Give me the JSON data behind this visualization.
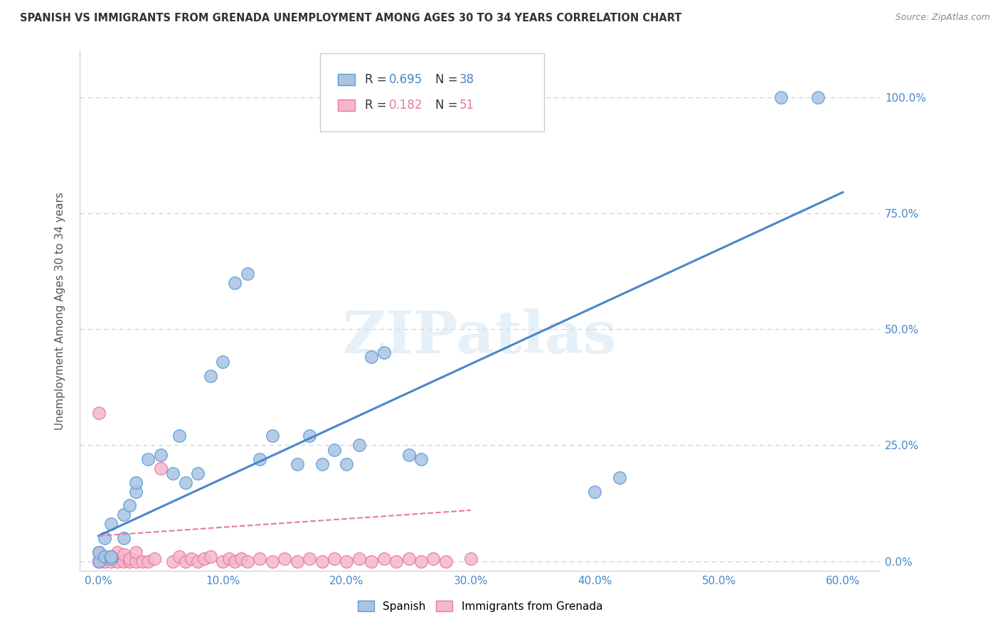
{
  "title": "SPANISH VS IMMIGRANTS FROM GRENADA UNEMPLOYMENT AMONG AGES 30 TO 34 YEARS CORRELATION CHART",
  "source": "Source: ZipAtlas.com",
  "xlabel_ticks": [
    "0.0%",
    "10.0%",
    "20.0%",
    "30.0%",
    "40.0%",
    "50.0%",
    "60.0%"
  ],
  "xlabel_vals": [
    0.0,
    0.1,
    0.2,
    0.3,
    0.4,
    0.5,
    0.6
  ],
  "ylabel_ticks": [
    "0.0%",
    "25.0%",
    "50.0%",
    "75.0%",
    "100.0%"
  ],
  "ylabel_vals": [
    0.0,
    0.25,
    0.5,
    0.75,
    1.0
  ],
  "ylabel_label": "Unemployment Among Ages 30 to 34 years",
  "xlim": [
    -0.015,
    0.63
  ],
  "ylim": [
    -0.02,
    1.1
  ],
  "spanish_R": 0.695,
  "spanish_N": 38,
  "grenada_R": 0.182,
  "grenada_N": 51,
  "spanish_color": "#aac4e2",
  "spanish_edge_color": "#5b9bd5",
  "grenada_color": "#f5b8cb",
  "grenada_edge_color": "#e8799e",
  "spanish_line_color": "#4a86c8",
  "grenada_line_color": "#e8799e",
  "watermark_text": "ZIPatlas",
  "spanish_points_x": [
    0.0,
    0.0,
    0.005,
    0.005,
    0.01,
    0.01,
    0.01,
    0.02,
    0.02,
    0.025,
    0.03,
    0.03,
    0.04,
    0.05,
    0.06,
    0.065,
    0.07,
    0.08,
    0.09,
    0.1,
    0.11,
    0.12,
    0.13,
    0.14,
    0.16,
    0.17,
    0.18,
    0.19,
    0.2,
    0.21,
    0.22,
    0.23,
    0.25,
    0.26,
    0.4,
    0.42,
    0.55,
    0.58
  ],
  "spanish_points_y": [
    0.0,
    0.02,
    0.01,
    0.05,
    0.005,
    0.01,
    0.08,
    0.05,
    0.1,
    0.12,
    0.15,
    0.17,
    0.22,
    0.23,
    0.19,
    0.27,
    0.17,
    0.19,
    0.4,
    0.43,
    0.6,
    0.62,
    0.22,
    0.27,
    0.21,
    0.27,
    0.21,
    0.24,
    0.21,
    0.25,
    0.44,
    0.45,
    0.23,
    0.22,
    0.15,
    0.18,
    1.0,
    1.0
  ],
  "grenada_points_x": [
    0.0,
    0.0,
    0.0,
    0.0,
    0.0,
    0.005,
    0.005,
    0.01,
    0.01,
    0.01,
    0.015,
    0.015,
    0.02,
    0.02,
    0.025,
    0.025,
    0.03,
    0.03,
    0.035,
    0.04,
    0.045,
    0.05,
    0.06,
    0.065,
    0.07,
    0.075,
    0.08,
    0.085,
    0.09,
    0.1,
    0.105,
    0.11,
    0.115,
    0.12,
    0.13,
    0.14,
    0.15,
    0.16,
    0.17,
    0.18,
    0.19,
    0.2,
    0.21,
    0.22,
    0.23,
    0.24,
    0.25,
    0.26,
    0.27,
    0.28,
    0.3
  ],
  "grenada_points_y": [
    0.0,
    0.0,
    0.0,
    0.02,
    0.32,
    0.0,
    0.01,
    0.0,
    0.005,
    0.01,
    0.0,
    0.02,
    0.0,
    0.015,
    0.0,
    0.005,
    0.0,
    0.02,
    0.0,
    0.0,
    0.005,
    0.2,
    0.0,
    0.01,
    0.0,
    0.005,
    0.0,
    0.005,
    0.01,
    0.0,
    0.005,
    0.0,
    0.005,
    0.0,
    0.005,
    0.0,
    0.005,
    0.0,
    0.005,
    0.0,
    0.005,
    0.0,
    0.005,
    0.0,
    0.005,
    0.0,
    0.005,
    0.0,
    0.005,
    0.0,
    0.005
  ],
  "spanish_line_x": [
    0.0,
    0.6
  ],
  "spanish_line_y": [
    0.055,
    0.795
  ],
  "grenada_line_x": [
    0.0,
    0.3
  ],
  "grenada_line_y": [
    0.055,
    0.11
  ]
}
